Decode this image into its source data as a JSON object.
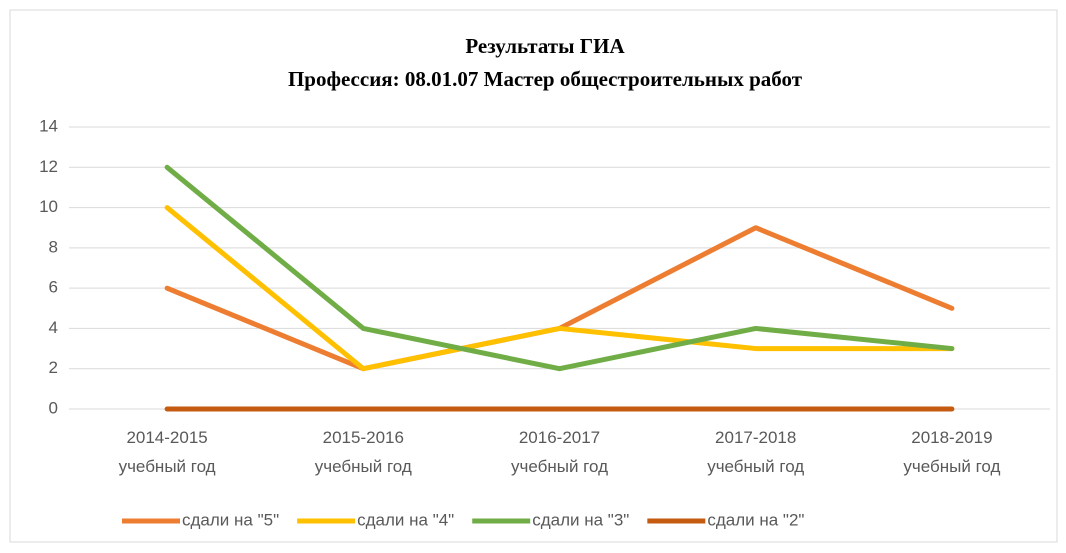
{
  "chart_data": {
    "type": "line",
    "title": "Результаты ГИА",
    "subtitle": "Профессия: 08.01.07 Мастер общестроительных работ",
    "categories": [
      "2014-2015 учебный год",
      "2015-2016 учебный год",
      "2016-2017 учебный год",
      "2017-2018 учебный год",
      "2018-2019 учебный год"
    ],
    "series": [
      {
        "name": "сдали на \"5\"",
        "color": "#ed7d31",
        "values": [
          6,
          2,
          4,
          9,
          5
        ]
      },
      {
        "name": "сдали на \"4\"",
        "color": "#ffc000",
        "values": [
          10,
          2,
          4,
          3,
          3
        ]
      },
      {
        "name": "сдали на \"3\"",
        "color": "#70ad47",
        "values": [
          12,
          4,
          2,
          4,
          3
        ]
      },
      {
        "name": "сдали на \"2\"",
        "color": "#c55a11",
        "values": [
          0,
          0,
          0,
          0,
          0
        ]
      }
    ],
    "ylim": [
      0,
      14
    ],
    "yticks": [
      0,
      2,
      4,
      6,
      8,
      10,
      12,
      14
    ],
    "grid": true,
    "legend": "bottom"
  }
}
